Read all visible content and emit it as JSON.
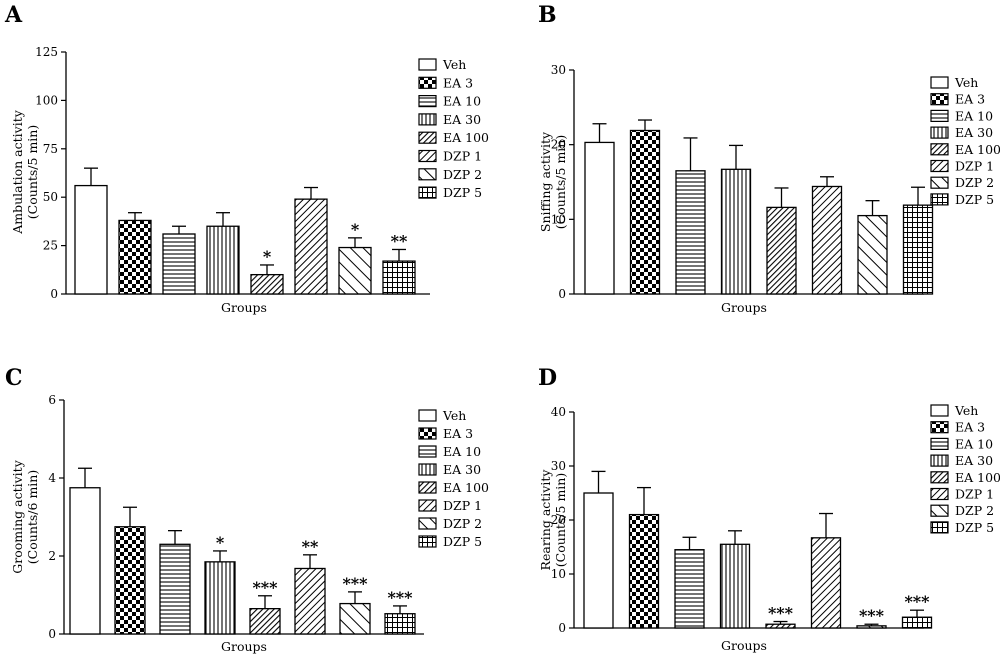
{
  "chart_data": [
    {
      "type": "bar",
      "panel": "A",
      "categories": [
        "Veh",
        "EA 3",
        "EA 10",
        "EA 30",
        "EA 100",
        "DZP 1",
        "DZP 2",
        "DZP 5"
      ],
      "values": [
        56,
        38,
        31,
        35,
        10,
        49,
        24,
        17
      ],
      "errors": [
        9,
        4,
        4,
        7,
        5,
        6,
        5,
        6
      ],
      "significance": [
        "",
        "",
        "",
        "",
        "*",
        "",
        "*",
        "**"
      ],
      "xlabel": "Groups",
      "ylabel_line1": "Ambulation activity",
      "ylabel_line2": "(Counts/5 min)",
      "ylim": [
        0,
        125
      ],
      "yticks": [
        "0",
        "25",
        "50",
        "75",
        "100",
        "125"
      ],
      "legend": [
        "Veh",
        "EA 3",
        "EA 10",
        "EA 30",
        "EA 100",
        "DZP 1",
        "DZP 2",
        "DZP 5"
      ],
      "legend_position": "right"
    },
    {
      "type": "bar",
      "panel": "B",
      "categories": [
        "Veh",
        "EA 3",
        "EA 10",
        "EA 30",
        "EA 100",
        "DZP 1",
        "DZP 2",
        "DZP 5"
      ],
      "values": [
        20.3,
        21.9,
        16.5,
        16.7,
        11.6,
        14.4,
        10.5,
        11.9
      ],
      "errors": [
        2.5,
        1.4,
        4.4,
        3.2,
        2.6,
        1.3,
        2.0,
        2.4
      ],
      "significance": [
        "",
        "",
        "",
        "",
        "",
        "",
        "",
        ""
      ],
      "xlabel": "Groups",
      "ylabel_line1": "Sniffing activity",
      "ylabel_line2": "(Counts/5 min)",
      "ylim": [
        0,
        30
      ],
      "yticks": [
        "0",
        "10",
        "20",
        "30"
      ],
      "legend": [
        "Veh",
        "EA 3",
        "EA 10",
        "EA 30",
        "EA 100",
        "DZP 1",
        "DZP 2",
        "DZP 5"
      ],
      "legend_position": "right"
    },
    {
      "type": "bar",
      "panel": "C",
      "categories": [
        "Veh",
        "EA 3",
        "EA 10",
        "EA 30",
        "EA 100",
        "DZP 1",
        "DZP 2",
        "DZP 5"
      ],
      "values": [
        3.75,
        2.75,
        2.3,
        1.85,
        0.65,
        1.68,
        0.78,
        0.52
      ],
      "errors": [
        0.5,
        0.5,
        0.35,
        0.28,
        0.33,
        0.35,
        0.3,
        0.2
      ],
      "significance": [
        "",
        "",
        "",
        "*",
        "***",
        "**",
        "***",
        "***"
      ],
      "xlabel": "Groups",
      "ylabel_line1": "Grooming activity",
      "ylabel_line2": "(Counts/6 min)",
      "ylim": [
        0,
        6
      ],
      "yticks": [
        "0",
        "2",
        "4",
        "6"
      ],
      "legend": [
        "Veh",
        "EA 3",
        "EA 10",
        "EA 30",
        "EA 100",
        "DZP 1",
        "DZP 2",
        "DZP 5"
      ],
      "legend_position": "right"
    },
    {
      "type": "bar",
      "panel": "D",
      "categories": [
        "Veh",
        "EA 3",
        "EA 10",
        "EA 30",
        "EA 100",
        "DZP 1",
        "DZP 2",
        "DZP 5"
      ],
      "values": [
        25,
        21,
        14.5,
        15.5,
        0.7,
        16.7,
        0.4,
        2.0
      ],
      "errors": [
        4,
        5,
        2.3,
        2.5,
        0.5,
        4.5,
        0.3,
        1.3
      ],
      "significance": [
        "",
        "",
        "",
        "",
        "***",
        "",
        "***",
        "***"
      ],
      "xlabel": "Groups",
      "ylabel_line1": "Rearing activity",
      "ylabel_line2": "(Counts/5 min)",
      "ylim": [
        0,
        40
      ],
      "yticks": [
        "0",
        "10",
        "20",
        "30",
        "40"
      ],
      "legend": [
        "Veh",
        "EA 3",
        "EA 10",
        "EA 30",
        "EA 100",
        "DZP 1",
        "DZP 2",
        "DZP 5"
      ],
      "legend_position": "right"
    }
  ]
}
